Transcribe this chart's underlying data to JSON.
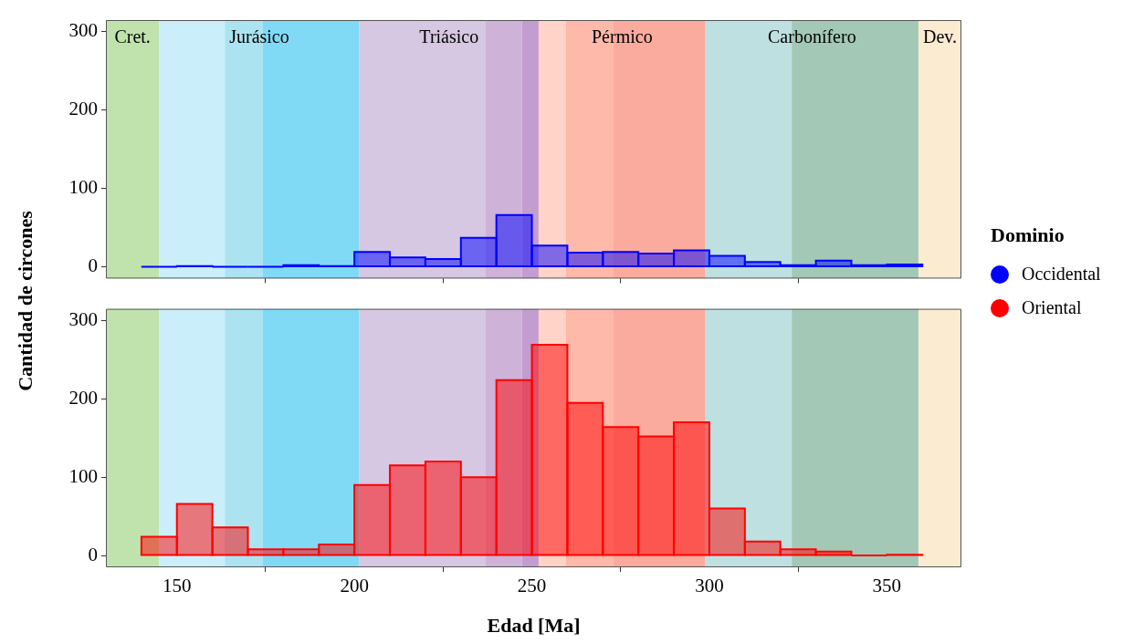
{
  "chart_data": [
    {
      "type": "histogram",
      "ylabel": "Cantidad de circones",
      "legend_title": "Dominio",
      "legend": "right",
      "bins": [
        140,
        150,
        160,
        170,
        180,
        190,
        200,
        210,
        220,
        230,
        240,
        250,
        260,
        270,
        280,
        290,
        300,
        310,
        320,
        330,
        340,
        350,
        360
      ],
      "series": [
        {
          "name": "Occidental",
          "color": "#0000ff",
          "values": [
            0,
            1,
            0,
            0,
            2,
            1,
            19,
            12,
            10,
            37,
            66,
            27,
            18,
            19,
            17,
            21,
            14,
            6,
            2,
            8,
            2,
            3
          ]
        }
      ],
      "xlim": [
        130,
        371
      ],
      "xticks": [
        150,
        200,
        250,
        300,
        350
      ],
      "ylim": [
        -15,
        315
      ],
      "yticks": [
        0,
        100,
        200,
        300
      ],
      "tick_labels": "y",
      "bands": [
        {
          "axis": "x",
          "from": 130,
          "to": 145,
          "label": "Cret.",
          "color": "#c0e3ad"
        },
        {
          "axis": "x",
          "from": 145,
          "to": 163.5,
          "label": "Jurásico",
          "color": "#caeefa"
        },
        {
          "axis": "x",
          "from": 163.5,
          "to": 174.1,
          "color": "#abe3f0"
        },
        {
          "axis": "x",
          "from": 174.1,
          "to": 201.4,
          "color": "#80daf5"
        },
        {
          "axis": "x",
          "from": 201.4,
          "to": 237,
          "label": "Triásico",
          "color": "#d6c7e2"
        },
        {
          "axis": "x",
          "from": 237,
          "to": 247.2,
          "color": "#ceb2d8"
        },
        {
          "axis": "x",
          "from": 247.2,
          "to": 251.9,
          "color": "#c39dcf"
        },
        {
          "axis": "x",
          "from": 251.9,
          "to": 259.5,
          "label": "Pérmico",
          "color": "#ffd3c8"
        },
        {
          "axis": "x",
          "from": 259.5,
          "to": 273,
          "color": "#ffb9aa"
        },
        {
          "axis": "x",
          "from": 273,
          "to": 298.9,
          "color": "#faab9e"
        },
        {
          "axis": "x",
          "from": 298.9,
          "to": 323.2,
          "label": "Carbonífero",
          "color": "#bfe0e0"
        },
        {
          "axis": "x",
          "from": 323.2,
          "to": 358.9,
          "color": "#a3c8b5"
        },
        {
          "axis": "x",
          "from": 358.9,
          "to": 371,
          "label": "Dev.",
          "color": "#fbebd0"
        }
      ]
    },
    {
      "type": "histogram",
      "xlabel": "Edad [Ma]",
      "legend": "right",
      "bins": [
        140,
        150,
        160,
        170,
        180,
        190,
        200,
        210,
        220,
        230,
        240,
        250,
        260,
        270,
        280,
        290,
        300,
        310,
        320,
        330,
        340,
        350,
        360
      ],
      "series": [
        {
          "name": "Oriental",
          "color": "#ff0000",
          "values": [
            24,
            66,
            36,
            8,
            8,
            14,
            90,
            115,
            120,
            100,
            224,
            269,
            195,
            164,
            152,
            170,
            60,
            18,
            8,
            5,
            0,
            1
          ]
        }
      ],
      "xlim": [
        130,
        371
      ],
      "xticks": [
        150,
        200,
        250,
        300,
        350
      ],
      "ylim": [
        -15,
        315
      ],
      "yticks": [
        0,
        100,
        200,
        300
      ],
      "bands": [
        {
          "axis": "x",
          "from": 130,
          "to": 145,
          "color": "#c0e3ad"
        },
        {
          "axis": "x",
          "from": 145,
          "to": 163.5,
          "color": "#caeefa"
        },
        {
          "axis": "x",
          "from": 163.5,
          "to": 174.1,
          "color": "#abe3f0"
        },
        {
          "axis": "x",
          "from": 174.1,
          "to": 201.4,
          "color": "#80daf5"
        },
        {
          "axis": "x",
          "from": 201.4,
          "to": 237,
          "color": "#d6c7e2"
        },
        {
          "axis": "x",
          "from": 237,
          "to": 247.2,
          "color": "#ceb2d8"
        },
        {
          "axis": "x",
          "from": 247.2,
          "to": 251.9,
          "color": "#c39dcf"
        },
        {
          "axis": "x",
          "from": 251.9,
          "to": 259.5,
          "color": "#ffd3c8"
        },
        {
          "axis": "x",
          "from": 259.5,
          "to": 273,
          "color": "#ffb9aa"
        },
        {
          "axis": "x",
          "from": 273,
          "to": 298.9,
          "color": "#faab9e"
        },
        {
          "axis": "x",
          "from": 298.9,
          "to": 323.2,
          "color": "#bfe0e0"
        },
        {
          "axis": "x",
          "from": 323.2,
          "to": 358.9,
          "color": "#a3c8b5"
        },
        {
          "axis": "x",
          "from": 358.9,
          "to": 371,
          "color": "#fbebd0"
        }
      ]
    }
  ]
}
